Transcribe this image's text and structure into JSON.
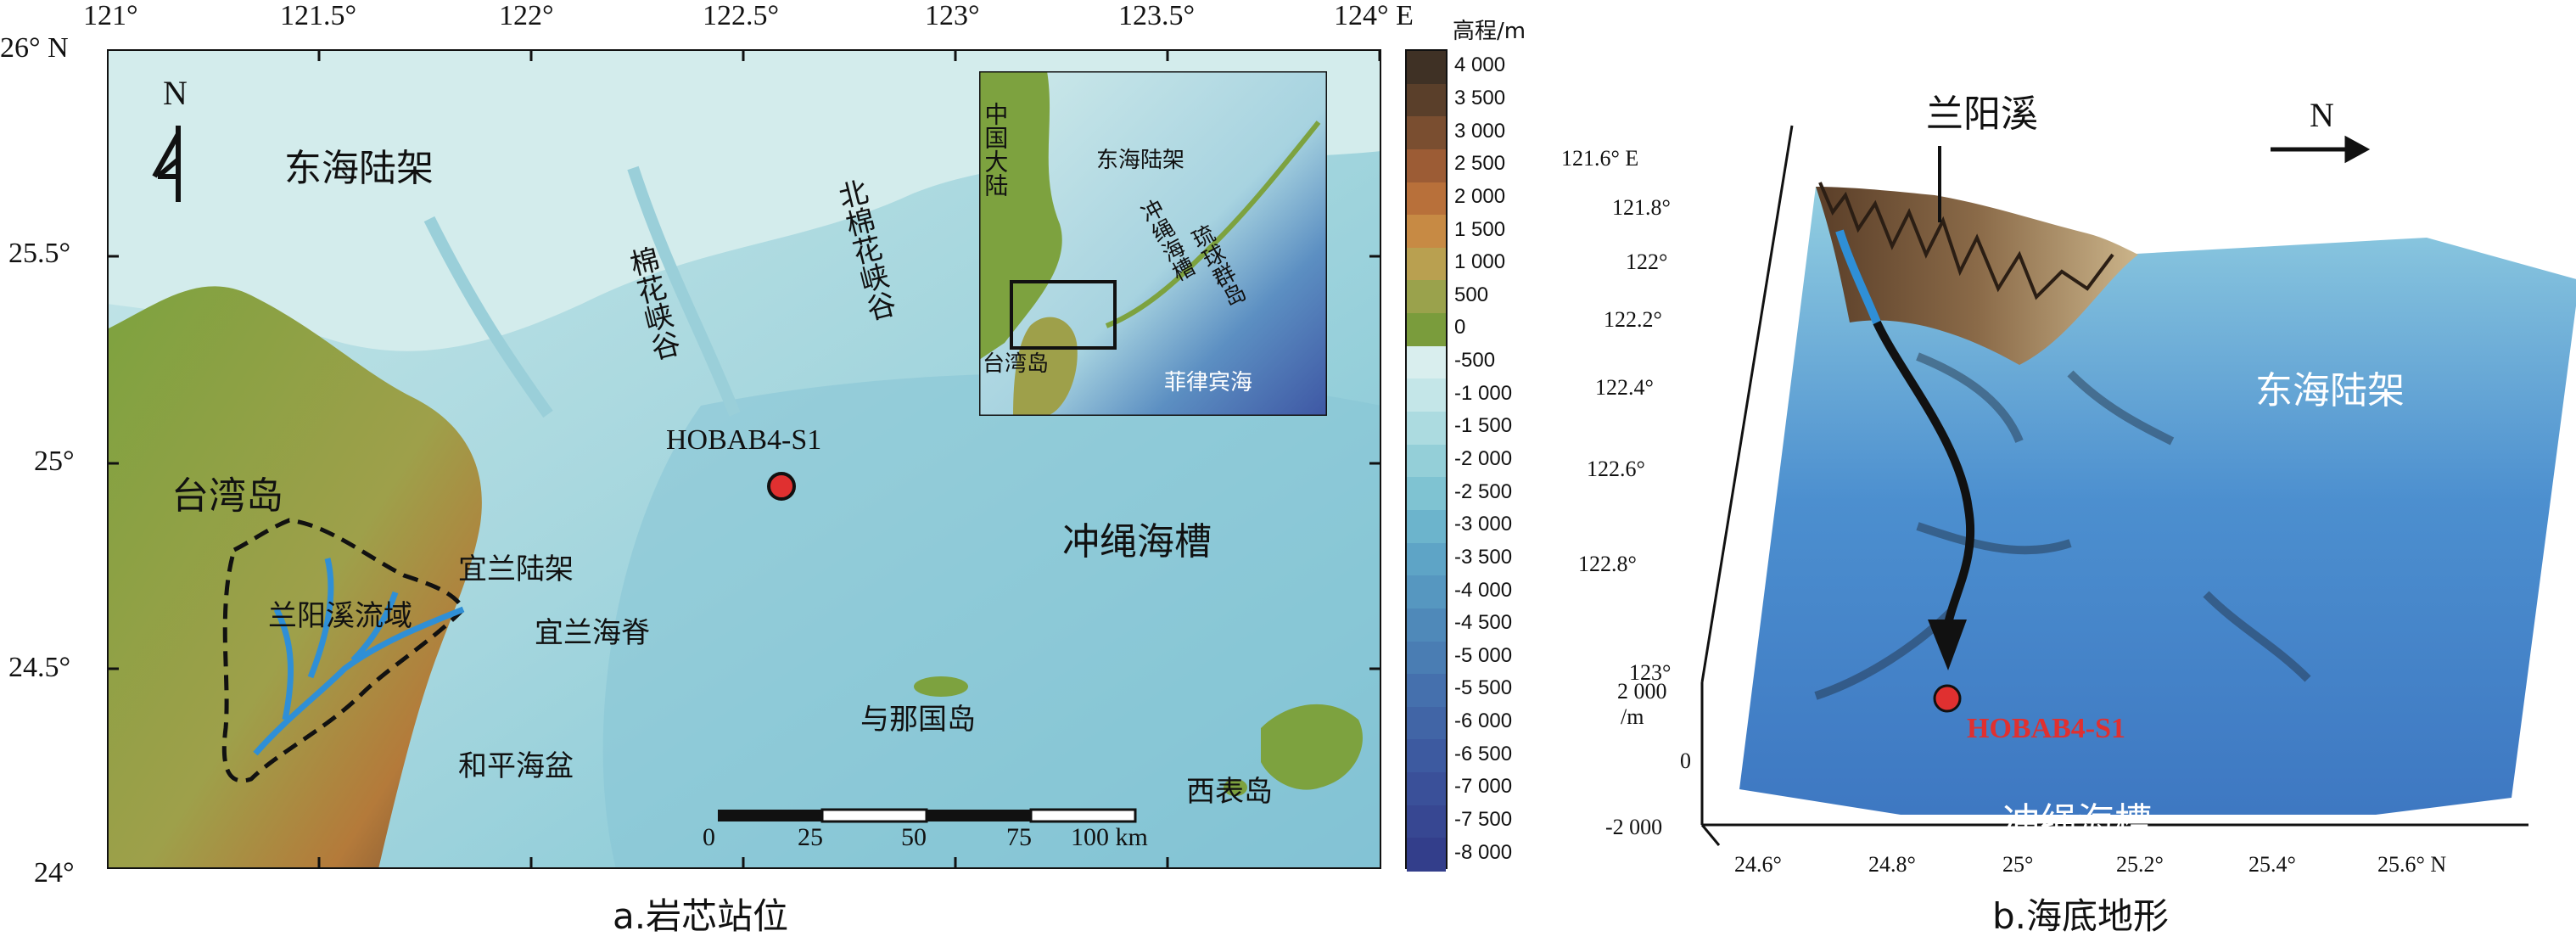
{
  "panel_a": {
    "caption": "a.岩芯站位",
    "top_ticks": [
      "121°",
      "121.5°",
      "122°",
      "122.5°",
      "123°",
      "123.5°",
      "124° E"
    ],
    "left_ticks": [
      "26° N",
      "25.5°",
      "25°",
      "24.5°",
      "24°"
    ],
    "north_label": "N",
    "labels": {
      "east_china_sea_shelf": "东海陆架",
      "taiwan_island": "台湾岛",
      "lanyang_basin": "兰阳溪流域",
      "yilan_shelf": "宜兰陆架",
      "yilan_ridge": "宜兰海脊",
      "heping_basin": "和平海盆",
      "yonaguni": "与那国岛",
      "iriomote": "西表岛",
      "okinawa_trough": "冲绳海槽",
      "mianhua_canyon": "棉花峡谷",
      "north_mianhua_canyon": "北棉花峡谷",
      "station": "HOBAB4-S1"
    },
    "inset": {
      "china_mainland": "中国大陆",
      "east_china_sea_shelf": "东海陆架",
      "okinawa_trough": "冲绳海槽",
      "ryukyu_islands": "琉球群岛",
      "taiwan": "台湾岛",
      "philippine_sea": "菲律宾海"
    },
    "scale_bar": {
      "ticks": [
        "0",
        "25",
        "50",
        "75",
        "100 km"
      ]
    },
    "legend": {
      "title": "高程/m",
      "land_ticks": [
        "4 000",
        "3 500",
        "3 000",
        "2 500",
        "2 000",
        "1 500",
        "1 000",
        "500",
        "0"
      ],
      "sea_ticks": [
        "-500",
        "-1 000",
        "-1 500",
        "-2 000",
        "-2 500",
        "-3 000",
        "-3 500",
        "-4 000",
        "-4 500",
        "-5 000",
        "-5 500",
        "-6 000",
        "-6 500",
        "-7 000",
        "-7 500",
        "-8 000"
      ],
      "land_colors": [
        "#3f3125",
        "#5a3f2a",
        "#7a4e30",
        "#9c5c35",
        "#b8703a",
        "#c78a44",
        "#b9a050",
        "#9aa24c",
        "#7a9c3c"
      ],
      "sea_colors": [
        "#d9eeee",
        "#c4e6e8",
        "#acdbe0",
        "#94cfd8",
        "#7fc3d2",
        "#6cb4cc",
        "#5ea4c6",
        "#5697c0",
        "#4f89b9",
        "#4a7db3",
        "#4570ad",
        "#4165a6",
        "#3d5aa0",
        "#3a5099",
        "#374792",
        "#333e8b"
      ]
    }
  },
  "panel_b": {
    "caption": "b.海底地形",
    "river": "兰阳溪",
    "north_label": "N",
    "shelf": "东海陆架",
    "trough": "冲绳海槽",
    "station": "HOBAB4-S1",
    "lon_ticks": [
      "121.6° E",
      "121.8°",
      "122°",
      "122.2°",
      "122.4°",
      "122.6°",
      "122.8°",
      "123°"
    ],
    "lat_ticks": [
      "24.6°",
      "24.8°",
      "25°",
      "25.2°",
      "25.4°",
      "25.6° N"
    ],
    "z_ticks": [
      "2 000",
      "0",
      "-2 000"
    ],
    "z_unit": "/m"
  },
  "colors": {
    "station_red": "#e03030",
    "river_blue": "#2f8fd6",
    "land_green": "#7da23f"
  }
}
